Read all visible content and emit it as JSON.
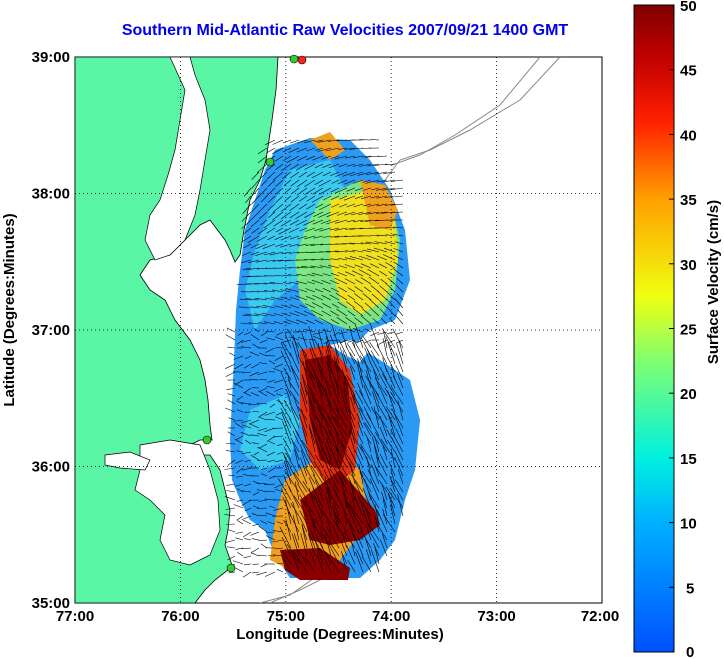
{
  "title": "Southern Mid-Atlantic Raw Velocities 2007/09/21 1400 GMT",
  "map": {
    "xlabel": "Longitude (Degrees:Minutes)",
    "ylabel": "Latitude (Degrees:Minutes)",
    "x_ticks": [
      "77:00",
      "76:00",
      "75:00",
      "74:00",
      "73:00",
      "72:00"
    ],
    "y_ticks": [
      "39:00",
      "38:00",
      "37:00",
      "36:00",
      "35:00"
    ],
    "lon_range": [
      -77,
      -72
    ],
    "lat_range": [
      35,
      39
    ],
    "grid": true
  },
  "colorbar": {
    "label": "Surface Velocity (cm/s)",
    "range": [
      0,
      50
    ],
    "ticks": [
      "50",
      "45",
      "40",
      "35",
      "30",
      "25",
      "20",
      "15",
      "10",
      "5",
      "0"
    ]
  },
  "colors": {
    "land": "#5af5a5",
    "title": "#0000ee",
    "station_green": "#33cc33",
    "station_red": "#ff2020"
  }
}
